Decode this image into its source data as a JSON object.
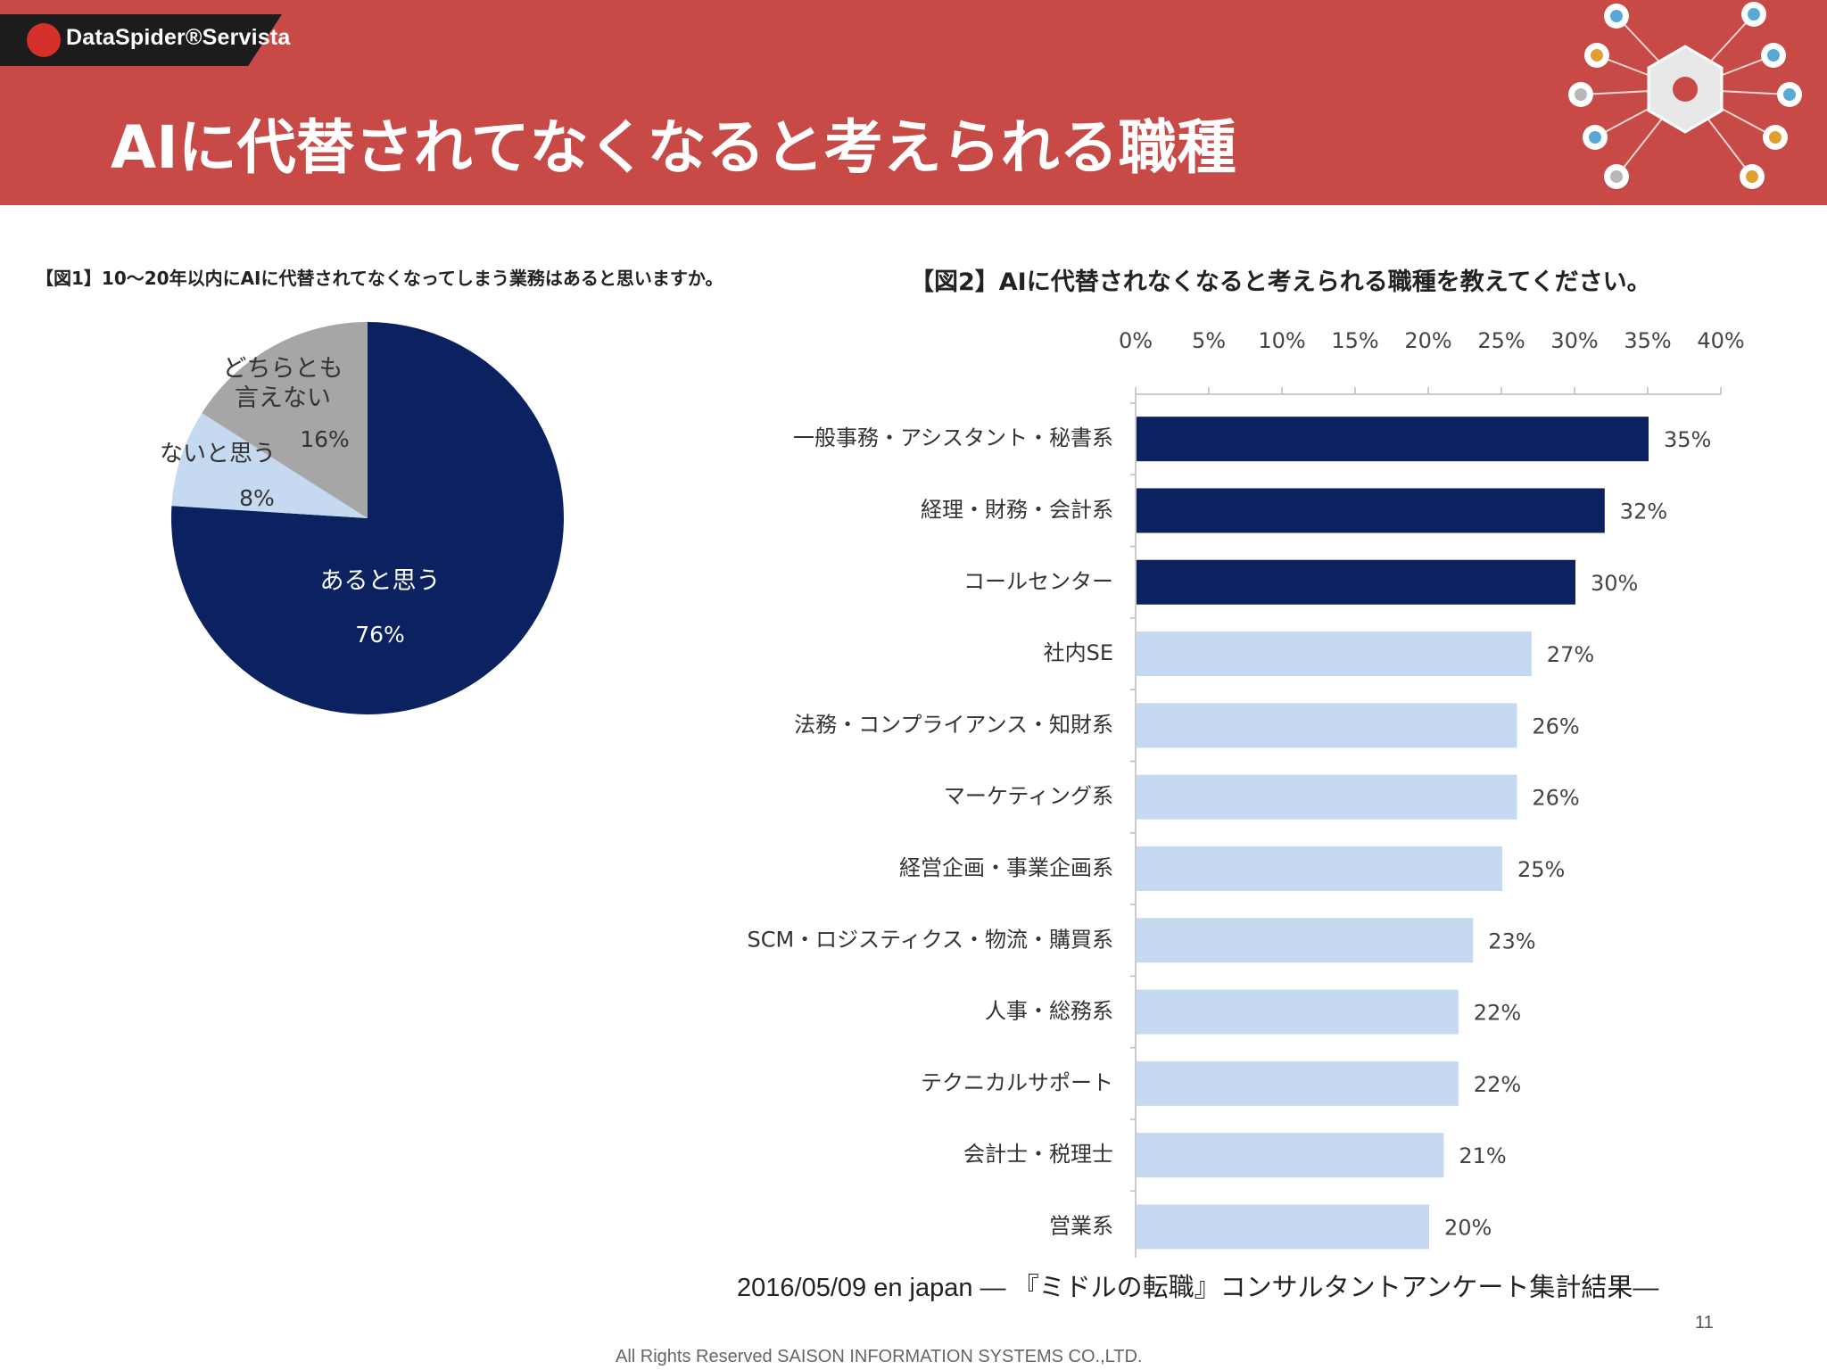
{
  "header": {
    "logo_text": "DataSpider®Servista",
    "title": "AIに代替されてなくなると考えられる職種"
  },
  "colors": {
    "header_bg": "#c84a47",
    "navy": "#0b2160",
    "light_blue": "#c5d9f1",
    "gray": "#a6a6a6"
  },
  "icons": [
    "spider-hub-icon",
    "cloud-icon",
    "monitor-icon",
    "database-icon",
    "box-icon",
    "wave-icon",
    "calendar-icon",
    "bag-icon",
    "document-icon",
    "wifi-icon"
  ],
  "fig1": {
    "title": "【図1】10〜20年以内にAIに代替されてなくなってしまう業務はあると思いますか。"
  },
  "fig2": {
    "title": "【図2】AIに代替されなくなると考えられる職種を教えてください。"
  },
  "chart_data": [
    {
      "type": "pie",
      "slices": [
        {
          "label": "あると思う",
          "value": 76,
          "value_label": "76%",
          "color": "#0b2160"
        },
        {
          "label": "ないと思う",
          "value": 8,
          "value_label": "8%",
          "color": "#c5d9f1"
        },
        {
          "label_lines": [
            "どちらとも",
            "言えない"
          ],
          "value": 16,
          "value_label": "16%",
          "color": "#a6a6a6"
        }
      ]
    },
    {
      "type": "bar",
      "orientation": "horizontal",
      "axis_ticks": [
        "0%",
        "5%",
        "10%",
        "15%",
        "20%",
        "25%",
        "30%",
        "35%",
        "40%"
      ],
      "xlim": [
        0,
        40
      ],
      "categories": [
        "一般事務・アシスタント・秘書系",
        "経理・財務・会計系",
        "コールセンター",
        "社内SE",
        "法務・コンプライアンス・知財系",
        "マーケティング系",
        "経営企画・事業企画系",
        "SCM・ロジスティクス・物流・購買系",
        "人事・総務系",
        "テクニカルサポート",
        "会計士・税理士",
        "営業系"
      ],
      "values": [
        35,
        32,
        30,
        27,
        26,
        26,
        25,
        23,
        22,
        22,
        21,
        20
      ],
      "value_labels": [
        "35%",
        "32%",
        "30%",
        "27%",
        "26%",
        "26%",
        "25%",
        "23%",
        "22%",
        "22%",
        "21%",
        "20%"
      ],
      "highlighted_count": 3
    }
  ],
  "footer": {
    "source": "2016/05/09 en japan ― 『ミドルの転職』コンサルタントアンケート集計結果―",
    "page_number": "11",
    "copyright": "All Rights Reserved SAISON INFORMATION SYSTEMS CO.,LTD."
  }
}
